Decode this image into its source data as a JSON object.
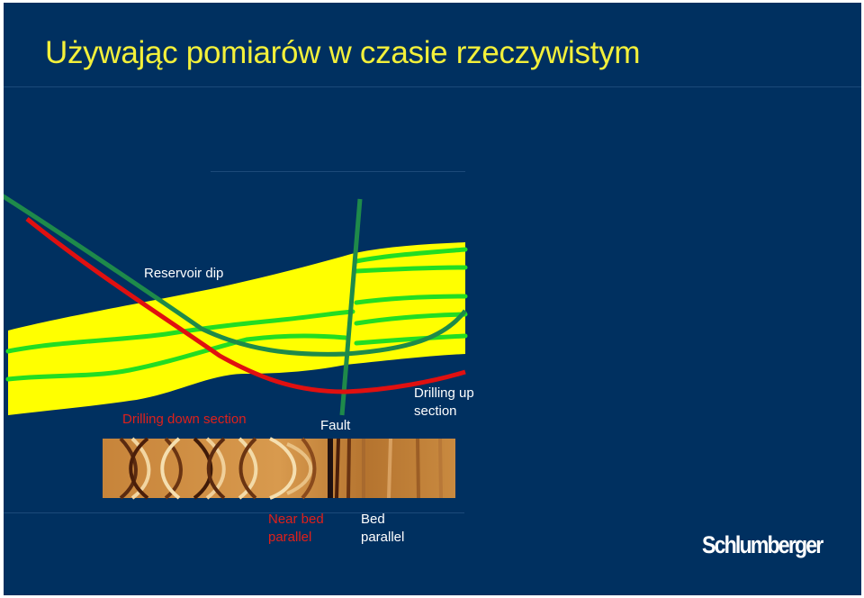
{
  "slide": {
    "title": "Używając pomiarów w czasie rzeczywistym",
    "colors": {
      "background": "#003060",
      "title": "#f3f03a",
      "reservoir": "#ffff00",
      "beds": "#22dd22",
      "well_down": "#e01010",
      "well_up": "#1e8a4a"
    }
  },
  "diagram": {
    "labels": {
      "reservoir_dip": "Reservoir dip",
      "drilling_down": "Drilling down section",
      "fault": "Fault",
      "drilling_up": "Drilling up\nsection",
      "near_bed": "Near bed\nparallel",
      "bed_parallel": "Bed\nparallel"
    }
  },
  "logo": {
    "text": "Schlumberger"
  }
}
